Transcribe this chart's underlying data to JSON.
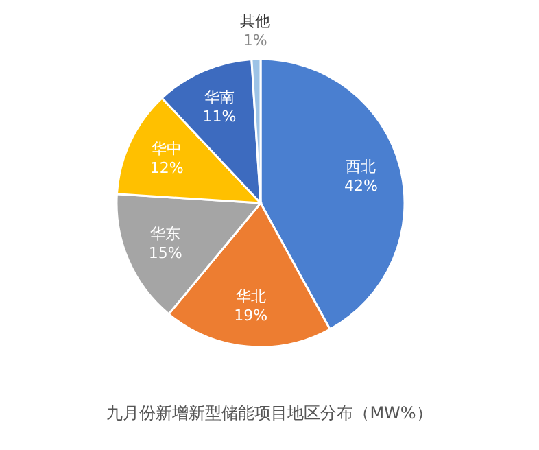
{
  "chart_data": {
    "type": "pie",
    "title": "九月份新增新型储能项目地区分布（MW%）",
    "categories": [
      "西北",
      "华北",
      "华东",
      "华中",
      "华南",
      "其他"
    ],
    "values": [
      42,
      19,
      15,
      12,
      11,
      1
    ],
    "value_labels": [
      "42%",
      "19%",
      "15%",
      "12%",
      "11%",
      "1%"
    ],
    "colors": [
      "#4a7fd0",
      "#ed7d31",
      "#a5a5a5",
      "#ffc000",
      "#3d6bbf",
      "#9dc3e6"
    ]
  }
}
